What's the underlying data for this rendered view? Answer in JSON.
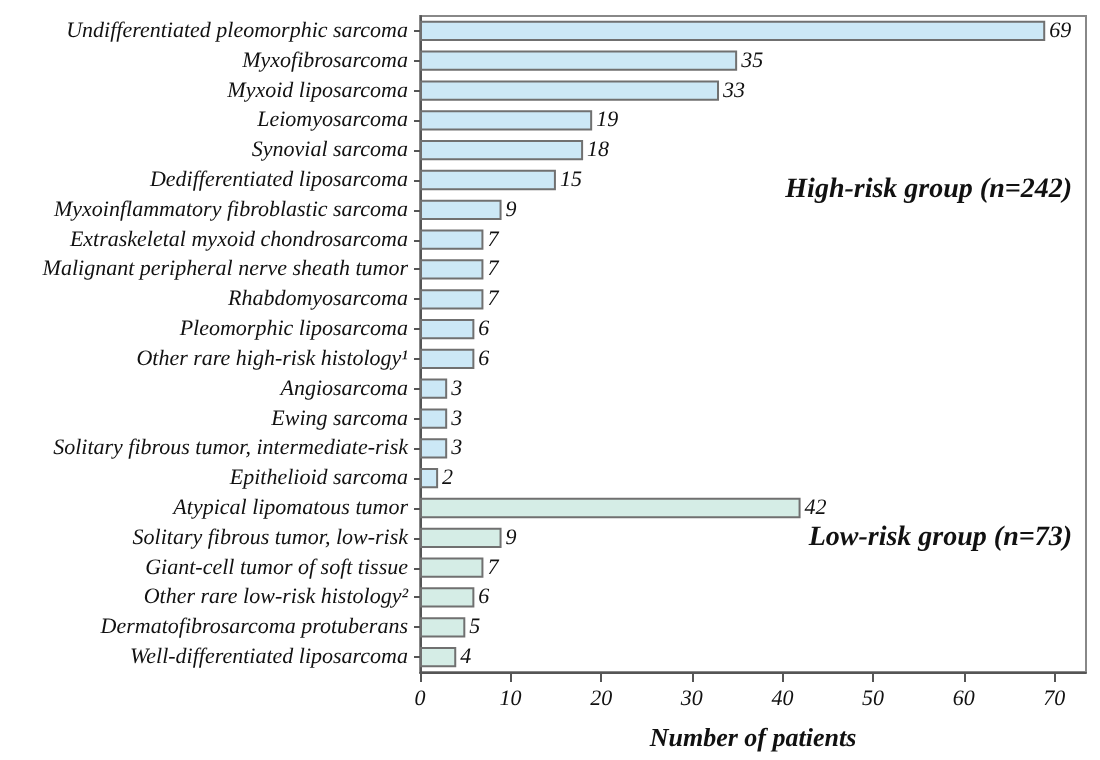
{
  "chart_data": {
    "type": "bar",
    "orientation": "horizontal",
    "xlabel": "Number of patients",
    "categories": [
      "Undifferentiated pleomorphic sarcoma",
      "Myxofibrosarcoma",
      "Myxoid liposarcoma",
      "Leiomyosarcoma",
      "Synovial sarcoma",
      "Dedifferentiated liposarcoma",
      "Myxoinflammatory fibroblastic sarcoma",
      "Extraskeletal myxoid chondrosarcoma",
      "Malignant peripheral nerve sheath tumor",
      "Rhabdomyosarcoma",
      "Pleomorphic liposarcoma",
      "Other rare high-risk histology¹",
      "Angiosarcoma",
      "Ewing sarcoma",
      "Solitary fibrous tumor, intermediate-risk",
      "Epithelioid sarcoma",
      "Atypical lipomatous tumor",
      "Solitary fibrous tumor, low-risk",
      "Giant-cell tumor of soft tissue",
      "Other rare low-risk histology²",
      "Dermatofibrosarcoma protuberans",
      "Well-differentiated liposarcoma"
    ],
    "values": [
      69,
      35,
      33,
      19,
      18,
      15,
      9,
      7,
      7,
      7,
      6,
      6,
      3,
      3,
      3,
      2,
      42,
      9,
      7,
      6,
      5,
      4
    ],
    "colors": [
      "#cce8f6",
      "#cce8f6",
      "#cce8f6",
      "#cce8f6",
      "#cce8f6",
      "#cce8f6",
      "#cce8f6",
      "#cce8f6",
      "#cce8f6",
      "#cce8f6",
      "#cce8f6",
      "#cce8f6",
      "#cce8f6",
      "#cce8f6",
      "#cce8f6",
      "#cce8f6",
      "#d5ede6",
      "#d5ede6",
      "#d5ede6",
      "#d5ede6",
      "#d5ede6",
      "#d5ede6"
    ],
    "data_labels": true,
    "xlim": [
      0,
      73.5
    ],
    "xticks": [
      0,
      10,
      20,
      30,
      40,
      50,
      60,
      70
    ],
    "grid": false,
    "annotations": [
      "High-risk group (n=242)",
      "Low-risk group (n=73)"
    ]
  }
}
